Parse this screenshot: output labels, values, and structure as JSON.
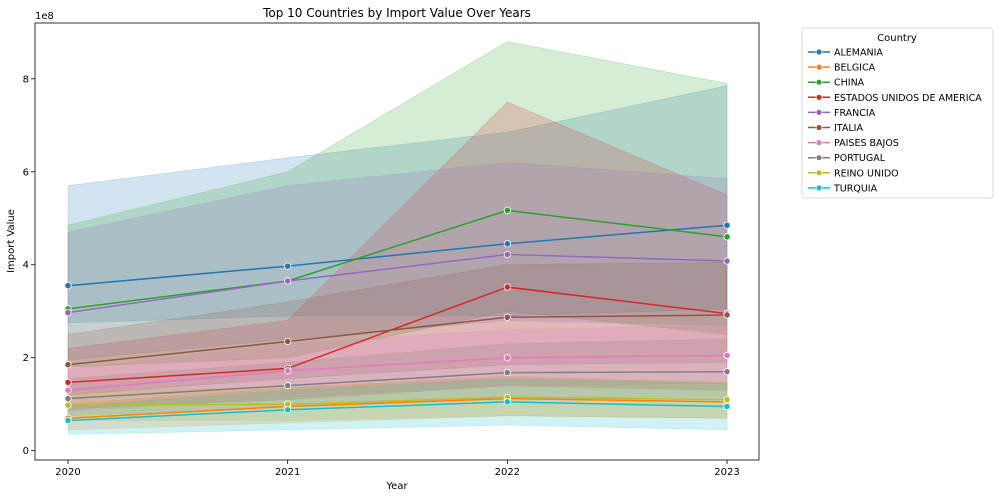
{
  "chart_data": {
    "type": "line",
    "title": "Top 10 Countries by Import Value Over Years",
    "xlabel": "Year",
    "ylabel": "Import Value",
    "y_scale_label": "1e8",
    "x": [
      2020,
      2021,
      2022,
      2023
    ],
    "x_tick_labels": [
      "2020",
      "2021",
      "2022",
      "2023"
    ],
    "ylim": [
      -0.2,
      9.2
    ],
    "y_ticks": [
      0,
      2,
      4,
      6,
      8
    ],
    "y_tick_labels": [
      "0",
      "2",
      "4",
      "6",
      "8"
    ],
    "grid": false,
    "legend": {
      "title": "Country",
      "placement": "outside-top-right"
    },
    "series": [
      {
        "name": "ALEMANIA",
        "color": "#1f77b4",
        "values": [
          3.55,
          3.97,
          4.45,
          4.85
        ],
        "ci_low": [
          2.75,
          2.9,
          2.9,
          3.05
        ],
        "ci_high": [
          5.7,
          6.3,
          6.85,
          7.85
        ]
      },
      {
        "name": "BELGICA",
        "color": "#ff7f0e",
        "values": [
          0.7,
          0.95,
          1.12,
          1.05
        ],
        "ci_low": [
          0.45,
          0.6,
          0.75,
          0.7
        ],
        "ci_high": [
          1.0,
          1.35,
          1.6,
          1.45
        ]
      },
      {
        "name": "CHINA",
        "color": "#2ca02c",
        "values": [
          3.05,
          3.65,
          5.17,
          4.6
        ],
        "ci_low": [
          1.8,
          2.0,
          3.0,
          2.5
        ],
        "ci_high": [
          4.85,
          6.0,
          8.8,
          7.9
        ]
      },
      {
        "name": "ESTADOS UNIDOS DE AMERICA",
        "color": "#d62728",
        "values": [
          1.47,
          1.77,
          3.52,
          2.95
        ],
        "ci_low": [
          0.9,
          1.1,
          1.4,
          1.3
        ],
        "ci_high": [
          2.2,
          2.8,
          7.5,
          5.5
        ]
      },
      {
        "name": "FRANCIA",
        "color": "#9467bd",
        "values": [
          2.97,
          3.65,
          4.22,
          4.08
        ],
        "ci_low": [
          1.95,
          2.4,
          2.8,
          2.7
        ],
        "ci_high": [
          4.7,
          5.7,
          6.2,
          5.85
        ]
      },
      {
        "name": "ITALIA",
        "color": "#8c564b",
        "values": [
          1.85,
          2.35,
          2.87,
          2.92
        ],
        "ci_low": [
          1.2,
          1.55,
          1.85,
          1.9
        ],
        "ci_high": [
          2.5,
          3.2,
          4.0,
          4.05
        ]
      },
      {
        "name": "PAISES BAJOS",
        "color": "#e377c2",
        "values": [
          1.3,
          1.72,
          2.0,
          2.05
        ],
        "ci_low": [
          0.85,
          1.15,
          1.4,
          1.45
        ],
        "ci_high": [
          1.75,
          2.3,
          2.6,
          2.7
        ]
      },
      {
        "name": "PORTUGAL",
        "color": "#7f7f7f",
        "values": [
          1.12,
          1.4,
          1.68,
          1.7
        ],
        "ci_low": [
          0.75,
          0.95,
          1.15,
          1.15
        ],
        "ci_high": [
          1.55,
          1.9,
          2.3,
          2.4
        ]
      },
      {
        "name": "REINO UNIDO",
        "color": "#bcbd22",
        "values": [
          0.98,
          1.0,
          1.15,
          1.1
        ],
        "ci_low": [
          0.65,
          0.65,
          0.75,
          0.7
        ],
        "ci_high": [
          1.3,
          1.35,
          1.55,
          1.5
        ]
      },
      {
        "name": "TURQUIA",
        "color": "#17becf",
        "values": [
          0.65,
          0.88,
          1.05,
          0.95
        ],
        "ci_low": [
          0.35,
          0.45,
          0.55,
          0.45
        ],
        "ci_high": [
          0.95,
          1.3,
          1.55,
          1.45
        ]
      }
    ]
  }
}
